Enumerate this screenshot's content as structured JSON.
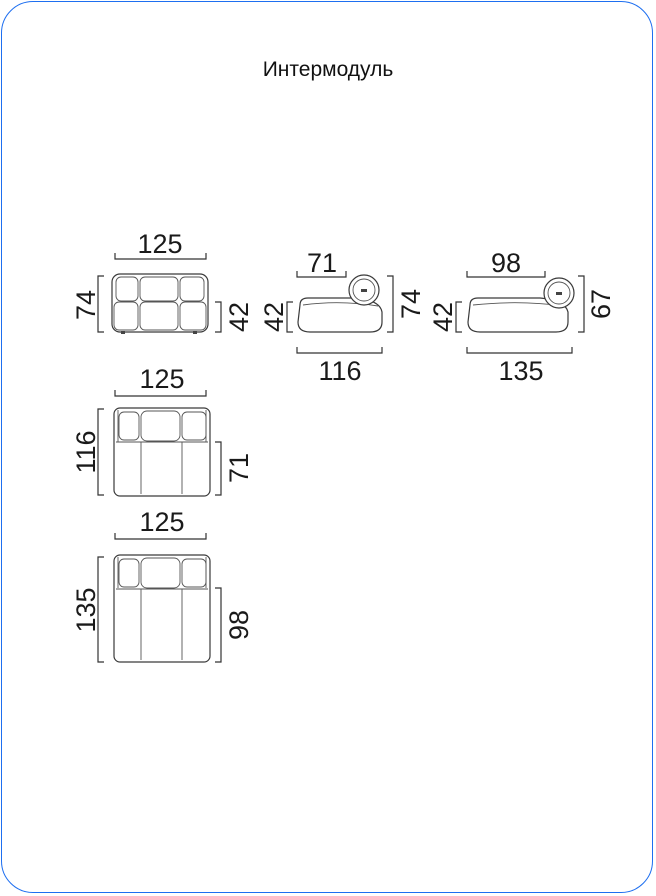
{
  "title": "Интермодуль",
  "front_view": {
    "width": "125",
    "height": "74",
    "seat_height": "42"
  },
  "side_view_small": {
    "top": "71",
    "seat_height": "42",
    "height": "74",
    "depth": "116"
  },
  "side_view_large": {
    "top": "98",
    "seat_height": "42",
    "height": "67",
    "depth": "135"
  },
  "top_view_small": {
    "width": "125",
    "depth": "116",
    "seat_depth": "71"
  },
  "top_view_large": {
    "width": "125",
    "depth": "135",
    "seat_depth": "98"
  },
  "colors": {
    "frame_border": "#1e6ff0"
  }
}
